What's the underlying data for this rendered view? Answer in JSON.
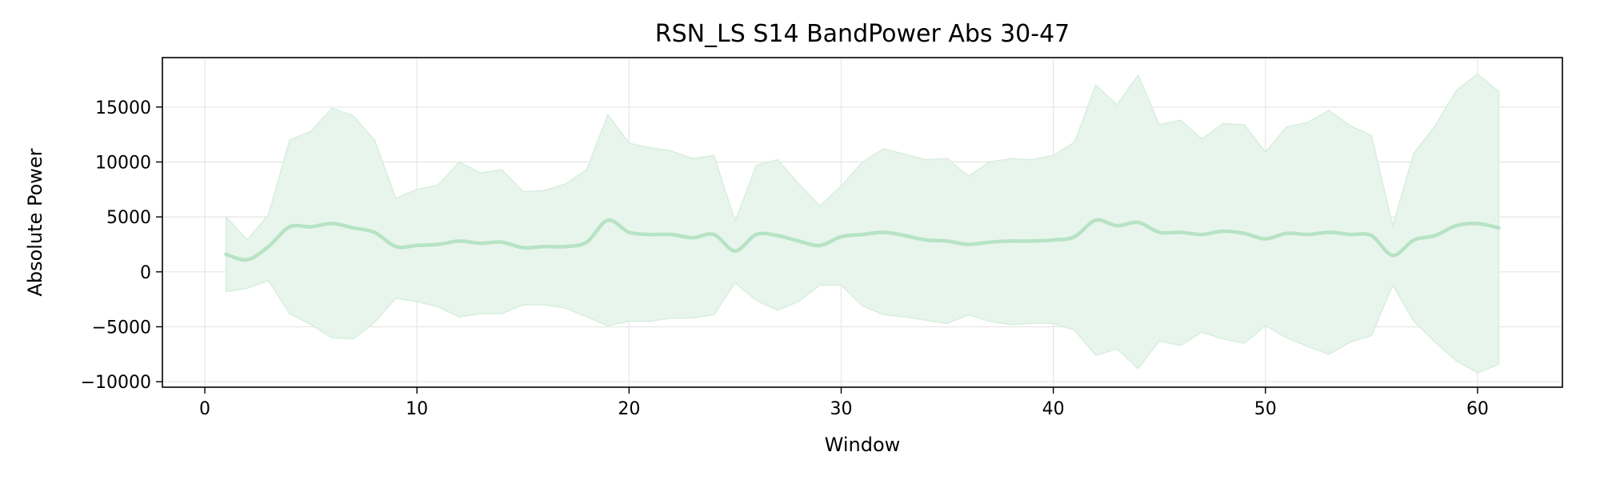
{
  "chart_data": {
    "type": "area",
    "title": "RSN_LS S14 BandPower Abs 30-47",
    "xlabel": "Window",
    "ylabel": "Absolute Power",
    "xlim": [
      -2,
      64
    ],
    "ylim": [
      -10500,
      19500
    ],
    "x_ticks": [
      0,
      10,
      20,
      30,
      40,
      50,
      60
    ],
    "y_ticks": [
      -10000,
      -5000,
      0,
      5000,
      10000,
      15000
    ],
    "y_tick_labels": [
      "−10000",
      "−5000",
      "0",
      "5000",
      "10000",
      "15000"
    ],
    "grid": true,
    "colors": {
      "line": "#b6e3c4",
      "band": "#e8f5ec",
      "band_edge": "#d7eedf"
    },
    "x": [
      1,
      2,
      3,
      4,
      5,
      6,
      7,
      8,
      9,
      10,
      11,
      12,
      13,
      14,
      15,
      16,
      17,
      18,
      19,
      20,
      21,
      22,
      23,
      24,
      25,
      26,
      27,
      28,
      29,
      30,
      31,
      32,
      33,
      34,
      35,
      36,
      37,
      38,
      39,
      40,
      41,
      42,
      43,
      44,
      45,
      46,
      47,
      48,
      49,
      50,
      51,
      52,
      53,
      54,
      55,
      56,
      57,
      58,
      59,
      60,
      61
    ],
    "series": [
      {
        "role": "mean",
        "values": [
          1600,
          1100,
          2300,
          4100,
          4100,
          4400,
          4000,
          3600,
          2300,
          2400,
          2500,
          2800,
          2600,
          2700,
          2200,
          2300,
          2300,
          2700,
          4700,
          3600,
          3400,
          3400,
          3100,
          3400,
          1900,
          3400,
          3300,
          2800,
          2400,
          3200,
          3400,
          3600,
          3300,
          2900,
          2800,
          2500,
          2700,
          2800,
          2800,
          2900,
          3200,
          4700,
          4200,
          4500,
          3600,
          3600,
          3400,
          3700,
          3500,
          3000,
          3500,
          3400,
          3600,
          3400,
          3300,
          1500,
          2900,
          3300,
          4200,
          4400,
          4000
        ]
      },
      {
        "role": "upper",
        "values": [
          5000,
          2900,
          5200,
          12000,
          12800,
          14900,
          14200,
          12000,
          6700,
          7500,
          7900,
          10000,
          9000,
          9300,
          7300,
          7400,
          8000,
          9300,
          14300,
          11700,
          11300,
          11000,
          10300,
          10600,
          4600,
          9700,
          10200,
          8000,
          6000,
          7800,
          10000,
          11200,
          10700,
          10200,
          10300,
          8700,
          10000,
          10300,
          10200,
          10600,
          11800,
          17000,
          15200,
          17900,
          13400,
          13800,
          12100,
          13500,
          13400,
          10900,
          13200,
          13600,
          14700,
          13300,
          12400,
          4200,
          10800,
          13300,
          16500,
          18000,
          16400
        ]
      },
      {
        "role": "lower",
        "values": [
          -1800,
          -1500,
          -800,
          -3800,
          -4800,
          -6000,
          -6100,
          -4600,
          -2400,
          -2700,
          -3200,
          -4100,
          -3800,
          -3800,
          -3000,
          -3000,
          -3300,
          -4100,
          -4900,
          -4500,
          -4500,
          -4200,
          -4200,
          -3900,
          -1000,
          -2600,
          -3500,
          -2700,
          -1200,
          -1200,
          -3100,
          -3900,
          -4100,
          -4400,
          -4700,
          -3900,
          -4500,
          -4800,
          -4700,
          -4700,
          -5300,
          -7600,
          -7000,
          -8800,
          -6300,
          -6700,
          -5500,
          -6100,
          -6500,
          -4900,
          -6000,
          -6800,
          -7500,
          -6400,
          -5800,
          -1200,
          -4500,
          -6400,
          -8100,
          -9200,
          -8400
        ]
      }
    ]
  }
}
